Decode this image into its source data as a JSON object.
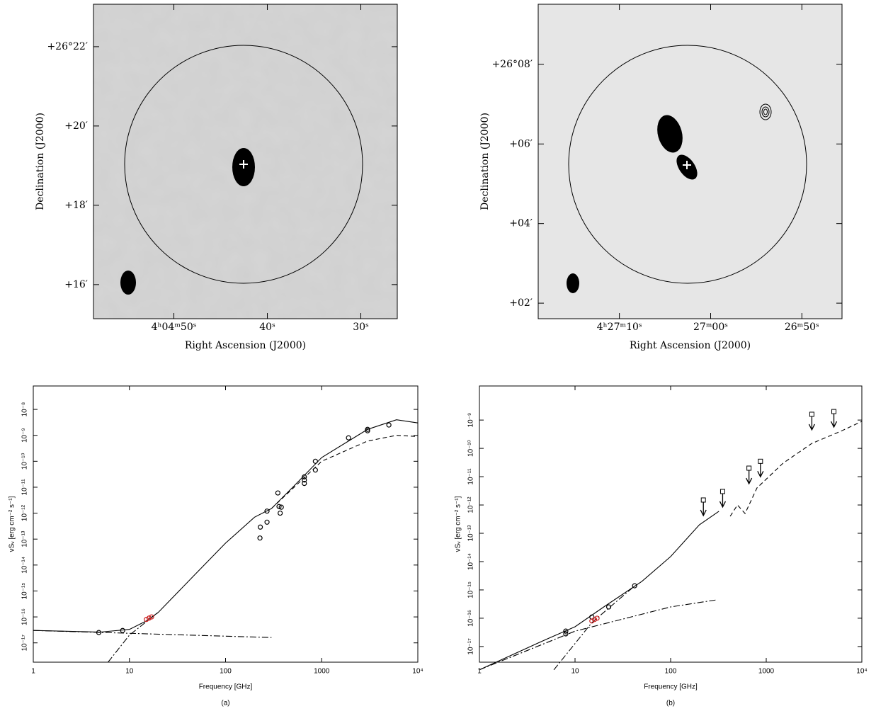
{
  "chart_data": [
    {
      "type": "map",
      "xlabel": "Right Ascension (J2000)",
      "ylabel": "Declination (J2000)",
      "xlim": [
        58.6,
        26.1
      ],
      "ylim": [
        15.14,
        23.07
      ],
      "xticks": [
        {
          "value": 50,
          "label": "4ʰ04ᵐ50ˢ"
        },
        {
          "value": 40,
          "label": "40ˢ"
        },
        {
          "value": 30,
          "label": "30ˢ"
        }
      ],
      "yticks": [
        {
          "value": 22,
          "label": "+26°22′"
        },
        {
          "value": 20,
          "label": "+20′"
        },
        {
          "value": 18,
          "label": "+18′"
        },
        {
          "value": 16,
          "label": "+16′"
        }
      ]
    },
    {
      "type": "map",
      "xlabel": "Right Ascension (J2000)",
      "ylabel": "Declination (J2000)",
      "xlim": [
        78.9,
        45.6
      ],
      "ylim": [
        1.61,
        9.51
      ],
      "xticks": [
        {
          "value": 70,
          "label": "4ʰ27ᵐ10ˢ"
        },
        {
          "value": 60,
          "label": "27ᵐ00ˢ"
        },
        {
          "value": 50,
          "label": "26ᵐ50ˢ"
        }
      ],
      "yticks": [
        {
          "value": 8,
          "label": "+26°08′"
        },
        {
          "value": 6,
          "label": "+06′"
        },
        {
          "value": 4,
          "label": "+04′"
        },
        {
          "value": 2,
          "label": "+02′"
        }
      ]
    },
    {
      "type": "sed",
      "xlabel": "Frequency [GHz]",
      "ylabel": "νSᵥ [erg cm⁻² s⁻¹]",
      "caption": "(a)",
      "log_x": true,
      "log_y": true,
      "xlim": [
        1,
        10000
      ],
      "ylim": [
        1.8e-18,
        8e-08
      ],
      "xticks": [
        1,
        10,
        100,
        1000,
        {
          "value": 10000,
          "label": "10⁴"
        }
      ],
      "yticks": [
        {
          "value": 1e-17,
          "label": "10⁻¹⁷"
        },
        {
          "value": 1e-16,
          "label": "10⁻¹⁶"
        },
        {
          "value": 1e-15,
          "label": "10⁻¹⁵"
        },
        {
          "value": 1e-14,
          "label": "10⁻¹⁴"
        },
        {
          "value": 1e-13,
          "label": "10⁻¹³"
        },
        {
          "value": 1e-12,
          "label": "10⁻¹²"
        },
        {
          "value": 1e-11,
          "label": "10⁻¹¹"
        },
        {
          "value": 1e-10,
          "label": "10⁻¹⁰"
        },
        {
          "value": 1e-09,
          "label": "10⁻⁹"
        },
        {
          "value": 1e-08,
          "label": "10⁻⁸"
        }
      ],
      "series": [
        {
          "color": "#000000",
          "marker": "point",
          "x": [
            4.8,
            8.5,
            228,
            230,
            270,
            270,
            350,
            360,
            370,
            380,
            660,
            660,
            660,
            860,
            860,
            1900,
            3000,
            3000,
            5000
          ],
          "values": [
            2.5e-17,
            3e-17,
            1.1e-13,
            2.9e-13,
            4.5e-13,
            1.2e-12,
            6e-12,
            1.8e-12,
            1e-12,
            1.7e-12,
            2.5e-11,
            1.9e-11,
            1.4e-11,
            4.6e-11,
            1e-10,
            8e-10,
            1.7e-09,
            1.5e-09,
            2.5e-09
          ]
        },
        {
          "color": "#cc2222",
          "marker": "point",
          "x": [
            15,
            16,
            17
          ],
          "values": [
            8e-17,
            9e-17,
            1e-16
          ]
        }
      ],
      "curves": [
        {
          "style": "solid",
          "x": [
            1,
            5,
            10,
            15,
            20,
            50,
            100,
            200,
            300,
            500,
            1000,
            3000,
            6000,
            10000
          ],
          "values": [
            3e-17,
            2.6e-17,
            3.3e-17,
            7e-17,
            1.5e-16,
            5e-15,
            7e-14,
            7e-13,
            1.5e-12,
            1e-11,
            1.4e-10,
            1.7e-09,
            4e-09,
            3e-09
          ]
        },
        {
          "style": "dashed",
          "x": [
            300,
            1000,
            3000,
            6000,
            10000
          ],
          "values": [
            1.5e-12,
            1e-10,
            6e-10,
            1e-09,
            9e-10
          ]
        },
        {
          "style": "dashdot",
          "x": [
            6,
            10,
            20
          ],
          "values": [
            1.8e-18,
            2e-17,
            1.5e-16
          ]
        },
        {
          "style": "dashdot",
          "x": [
            1,
            300
          ],
          "values": [
            3e-17,
            1.6e-17
          ]
        }
      ]
    },
    {
      "type": "sed",
      "xlabel": "Frequency [GHz]",
      "ylabel": "νSᵥ [erg cm⁻² s⁻¹]",
      "caption": "(b)",
      "log_x": true,
      "log_y": true,
      "xlim": [
        1,
        10000
      ],
      "ylim": [
        2.8e-18,
        1.6e-08
      ],
      "xticks": [
        1,
        10,
        100,
        1000,
        {
          "value": 10000,
          "label": "10⁴"
        }
      ],
      "yticks": [
        {
          "value": 1e-17,
          "label": "10⁻¹⁷"
        },
        {
          "value": 1e-16,
          "label": "10⁻¹⁶"
        },
        {
          "value": 1e-15,
          "label": "10⁻¹⁵"
        },
        {
          "value": 1e-14,
          "label": "10⁻¹⁴"
        },
        {
          "value": 1e-13,
          "label": "10⁻¹³"
        },
        {
          "value": 1e-12,
          "label": "10⁻¹²"
        },
        {
          "value": 1e-11,
          "label": "10⁻¹¹"
        },
        {
          "value": 1e-10,
          "label": "10⁻¹⁰"
        },
        {
          "value": 1e-09,
          "label": "10⁻⁹"
        }
      ],
      "series": [
        {
          "color": "#000000",
          "marker": "point",
          "x": [
            8,
            8,
            15,
            22.5,
            42
          ],
          "values": [
            3.5e-17,
            2.8e-17,
            1.1e-16,
            2.5e-16,
            1.4e-15
          ]
        },
        {
          "color": "#cc2222",
          "marker": "point",
          "x": [
            15,
            16,
            17
          ],
          "values": [
            8e-17,
            9e-17,
            1e-16
          ]
        },
        {
          "color": "#000000",
          "marker": "upper-limit",
          "x": [
            220,
            350,
            660,
            870,
            3000,
            5100
          ],
          "values": [
            1.5e-12,
            3e-12,
            2e-11,
            3.5e-11,
            1.6e-09,
            2e-09
          ]
        }
      ],
      "curves": [
        {
          "style": "solid",
          "x": [
            1,
            5,
            10,
            20,
            50,
            100,
            200,
            320
          ],
          "values": [
            1.5e-18,
            1.8e-17,
            5e-17,
            2.5e-16,
            2e-15,
            1.5e-14,
            2e-13,
            6e-13
          ]
        },
        {
          "style": "dashdot",
          "x": [
            1,
            10,
            100,
            310
          ],
          "values": [
            1.5e-18,
            3.5e-17,
            2.5e-16,
            4.5e-16
          ]
        },
        {
          "style": "dashdot",
          "x": [
            6,
            15,
            40
          ],
          "values": [
            1.5e-18,
            7e-17,
            1.2e-15
          ]
        },
        {
          "style": "dashed",
          "x": [
            420,
            500,
            600,
            800,
            1500,
            3000,
            6000,
            10000
          ],
          "values": [
            4e-13,
            1e-12,
            5e-13,
            4e-12,
            3e-11,
            1.5e-10,
            4e-10,
            9e-10
          ]
        }
      ]
    }
  ]
}
